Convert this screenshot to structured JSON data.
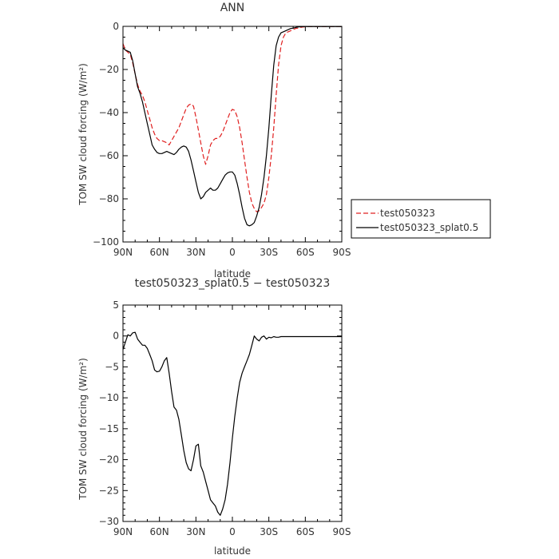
{
  "chart_data": [
    {
      "type": "line",
      "title": "ANN",
      "xlabel": "latitude",
      "ylabel": "TOM SW cloud forcing (W/m²)",
      "xlim": [
        90,
        -90
      ],
      "ylim": [
        -100,
        0
      ],
      "x_ticks": [
        90,
        60,
        30,
        0,
        -30,
        -60,
        -90
      ],
      "x_tick_labels": [
        "90N",
        "60N",
        "30N",
        "0",
        "30S",
        "60S",
        "90S"
      ],
      "y_ticks": [
        0,
        -20,
        -40,
        -60,
        -80,
        -100
      ],
      "y_tick_labels": [
        "0",
        "−20",
        "−40",
        "−60",
        "−80",
        "−100"
      ],
      "grid": false,
      "legend": "outside-right",
      "series": [
        {
          "name": "test050323",
          "color": "#e02020",
          "dash": "dashed",
          "x": [
            90,
            88,
            86,
            84,
            82,
            80,
            78,
            76,
            74,
            72,
            70,
            68,
            66,
            64,
            62,
            60,
            58,
            56,
            54,
            52,
            50,
            48,
            46,
            44,
            42,
            40,
            38,
            36,
            34,
            32,
            30,
            28,
            26,
            24,
            22,
            20,
            18,
            16,
            14,
            12,
            10,
            8,
            6,
            4,
            2,
            0,
            -2,
            -4,
            -6,
            -8,
            -10,
            -12,
            -14,
            -16,
            -18,
            -20,
            -22,
            -24,
            -26,
            -28,
            -30,
            -32,
            -34,
            -36,
            -38,
            -40,
            -42,
            -44,
            -46,
            -48,
            -50,
            -52,
            -54,
            -56,
            -58,
            -60,
            -62,
            -64,
            -66,
            -68,
            -70,
            -72,
            -74,
            -76,
            -78,
            -80,
            -82,
            -84,
            -86,
            -88,
            -90
          ],
          "y": [
            -8,
            -11,
            -12,
            -13,
            -17,
            -22,
            -27,
            -30,
            -32,
            -35,
            -39,
            -43,
            -47,
            -50,
            -52,
            -53,
            -53,
            -53.5,
            -54,
            -55,
            -53,
            -51,
            -49,
            -47,
            -44,
            -41,
            -38,
            -36.5,
            -36,
            -37,
            -42,
            -48,
            -54,
            -60,
            -64,
            -60,
            -55,
            -53,
            -52,
            -52,
            -51,
            -49,
            -46,
            -43,
            -40,
            -38.5,
            -39,
            -42,
            -47,
            -54,
            -62,
            -70,
            -77,
            -82,
            -84.5,
            -86,
            -85.5,
            -84,
            -82,
            -78,
            -70,
            -60,
            -47,
            -32,
            -18,
            -9,
            -5,
            -3,
            -2.5,
            -2,
            -1.5,
            -1,
            -0.8,
            -0.5,
            -0.3,
            -0.2,
            -0.1,
            -0.1,
            -0.1,
            -0.1,
            -0.1,
            -0.1,
            -0.1,
            -0.1,
            -0.1,
            -0.1,
            -0.1,
            -0.1,
            -0.1,
            -0.1,
            -0.1
          ]
        },
        {
          "name": "test050323_splat0.5",
          "color": "#000000",
          "dash": "solid",
          "x": [
            90,
            88,
            86,
            84,
            82,
            80,
            78,
            76,
            74,
            72,
            70,
            68,
            66,
            64,
            62,
            60,
            58,
            56,
            54,
            52,
            50,
            48,
            46,
            44,
            42,
            40,
            38,
            36,
            34,
            32,
            30,
            28,
            26,
            24,
            22,
            20,
            18,
            16,
            14,
            12,
            10,
            8,
            6,
            4,
            2,
            0,
            -2,
            -4,
            -6,
            -8,
            -10,
            -12,
            -14,
            -16,
            -18,
            -20,
            -22,
            -24,
            -26,
            -28,
            -30,
            -32,
            -34,
            -36,
            -38,
            -40,
            -42,
            -44,
            -46,
            -48,
            -50,
            -52,
            -54,
            -56,
            -58,
            -60,
            -62,
            -64,
            -66,
            -68,
            -70,
            -72,
            -74,
            -76,
            -78,
            -80,
            -82,
            -84,
            -86,
            -88,
            -90
          ],
          "y": [
            -10,
            -11,
            -11.5,
            -12,
            -16,
            -22,
            -28,
            -31,
            -35,
            -40,
            -45,
            -50,
            -55,
            -57,
            -58.5,
            -59,
            -59,
            -58.5,
            -58,
            -58.5,
            -59,
            -59.5,
            -58.5,
            -57,
            -56,
            -55.5,
            -56,
            -58,
            -62,
            -67,
            -72,
            -77,
            -80,
            -79,
            -77,
            -76,
            -75,
            -76,
            -76,
            -75,
            -73,
            -71,
            -69,
            -68,
            -67.5,
            -67.5,
            -69,
            -73,
            -78,
            -84,
            -89,
            -92,
            -92.5,
            -92,
            -91,
            -88,
            -84,
            -78,
            -70,
            -60,
            -47,
            -32,
            -18,
            -9,
            -5,
            -3,
            -2.5,
            -2,
            -1.5,
            -1,
            -0.8,
            -0.5,
            -0.3,
            -0.2,
            -0.1,
            -0.1,
            -0.1,
            -0.1,
            -0.1,
            -0.1,
            -0.1,
            -0.1,
            -0.1,
            -0.1,
            -0.1,
            -0.1,
            -0.1,
            -0.1,
            -0.1,
            -0.1,
            -0.1
          ]
        }
      ]
    },
    {
      "type": "line",
      "title": "test050323_splat0.5 − test050323",
      "xlabel": "latitude",
      "ylabel": "TOM SW cloud forcing (W/m²)",
      "xlim": [
        90,
        -90
      ],
      "ylim": [
        -30,
        5
      ],
      "x_ticks": [
        90,
        60,
        30,
        0,
        -30,
        -60,
        -90
      ],
      "x_tick_labels": [
        "90N",
        "60N",
        "30N",
        "0",
        "30S",
        "60S",
        "90S"
      ],
      "y_ticks": [
        5,
        0,
        -5,
        -10,
        -15,
        -20,
        -25,
        -30
      ],
      "y_tick_labels": [
        "5",
        "0",
        "−5",
        "−10",
        "−15",
        "−20",
        "−25",
        "−30"
      ],
      "grid": false,
      "series": [
        {
          "color": "#000000",
          "dash": "solid",
          "x": [
            90,
            88,
            86,
            84,
            82,
            80,
            78,
            76,
            74,
            72,
            70,
            68,
            66,
            64,
            62,
            60,
            58,
            56,
            54,
            52,
            50,
            48,
            46,
            44,
            42,
            40,
            38,
            36,
            34,
            32,
            30,
            28,
            26,
            24,
            22,
            20,
            18,
            16,
            14,
            12,
            10,
            8,
            6,
            4,
            2,
            0,
            -2,
            -4,
            -6,
            -8,
            -10,
            -12,
            -14,
            -16,
            -18,
            -20,
            -22,
            -24,
            -26,
            -28,
            -30,
            -32,
            -34,
            -36,
            -38,
            -40,
            -42,
            -44,
            -46,
            -48,
            -50,
            -52,
            -54,
            -56,
            -58,
            -60,
            -62,
            -64,
            -66,
            -68,
            -70,
            -72,
            -74,
            -76,
            -78,
            -80,
            -82,
            -84,
            -86,
            -88,
            -90
          ],
          "y": [
            -2.2,
            -1,
            0.2,
            0,
            0.5,
            0.6,
            -0.5,
            -1,
            -1.5,
            -1.5,
            -2,
            -3,
            -4,
            -5.5,
            -5.8,
            -5.7,
            -5,
            -4,
            -3.5,
            -6,
            -9,
            -11.5,
            -12,
            -13.5,
            -16,
            -18.5,
            -20.5,
            -21.5,
            -21.8,
            -20,
            -17.8,
            -17.5,
            -21,
            -22,
            -23.5,
            -25,
            -26.5,
            -27,
            -27.5,
            -28.5,
            -29,
            -28,
            -26.5,
            -24,
            -20.5,
            -16.5,
            -13,
            -10,
            -7.5,
            -6,
            -5,
            -4,
            -3,
            -1.5,
            0,
            -0.5,
            -0.8,
            -0.2,
            0,
            -0.5,
            -0.2,
            -0.3,
            -0.1,
            -0.2,
            -0.2,
            -0.1,
            -0.1,
            -0.1,
            -0.1,
            -0.1,
            -0.1,
            -0.1,
            -0.1,
            -0.1,
            -0.1,
            -0.1,
            -0.1,
            -0.1,
            -0.1,
            -0.1,
            -0.1,
            -0.1,
            -0.1,
            -0.1,
            -0.1,
            -0.1,
            -0.1,
            -0.1,
            -0.1,
            -0.1,
            -0.1
          ]
        }
      ]
    }
  ]
}
